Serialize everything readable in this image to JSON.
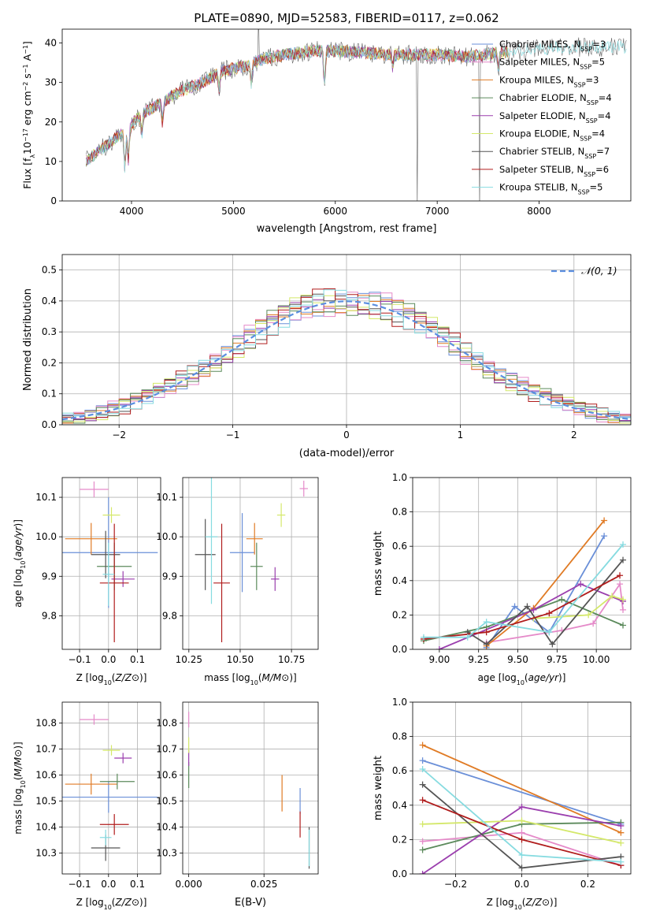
{
  "colors": {
    "series": [
      "#6a8fd8",
      "#e58ac9",
      "#e07b25",
      "#5b8a5b",
      "#9b3fae",
      "#d4e86a",
      "#555555",
      "#b01c1c",
      "#86dbe0"
    ],
    "gaussian": "#5b8fe0",
    "grid": "#b0b0b0"
  },
  "chart_data": [
    {
      "id": "spectrum",
      "type": "line",
      "title": "PLATE=0890, MJD=52583, FIBERID=0117, z=0.062",
      "xlabel": "wavelength [Angstrom, rest frame]",
      "ylabel": "Flux [f_λ10^-17 erg cm^-2 s^-1 A^-1]",
      "ylabel_parts": [
        "Flux [f",
        "λ",
        "10",
        "−17",
        " erg cm",
        "−2",
        " s",
        "−1",
        " A",
        "−1",
        "]"
      ],
      "xlim": [
        3320,
        8900
      ],
      "ylim": [
        0,
        43.5
      ],
      "xticks": [
        4000,
        5000,
        6000,
        7000,
        8000
      ],
      "yticks": [
        0,
        10,
        20,
        30,
        40
      ],
      "grid": false,
      "legend_position": "top-right",
      "legend": [
        {
          "label": "Chabrier MILES, N",
          "sub": "SSP",
          "val": "=3"
        },
        {
          "label": "Salpeter MILES, N",
          "sub": "SSP",
          "val": "=5"
        },
        {
          "label": "Kroupa MILES, N",
          "sub": "SSP",
          "val": "=3"
        },
        {
          "label": "Chabrier ELODIE, N",
          "sub": "SSP",
          "val": "=4"
        },
        {
          "label": "Salpeter ELODIE, N",
          "sub": "SSP",
          "val": "=4"
        },
        {
          "label": "Kroupa ELODIE, N",
          "sub": "SSP",
          "val": "=4"
        },
        {
          "label": "Chabrier STELIB, N",
          "sub": "SSP",
          "val": "=7"
        },
        {
          "label": "Salpeter STELIB, N",
          "sub": "SSP",
          "val": "=6"
        },
        {
          "label": "Kroupa STELIB, N",
          "sub": "SSP",
          "val": "=5"
        }
      ],
      "continuum": [
        [
          3550,
          10
        ],
        [
          3700,
          13
        ],
        [
          3850,
          16
        ],
        [
          3950,
          18
        ],
        [
          4100,
          22
        ],
        [
          4300,
          25
        ],
        [
          4500,
          28
        ],
        [
          4700,
          30
        ],
        [
          4900,
          33
        ],
        [
          5100,
          34
        ],
        [
          5300,
          36
        ],
        [
          5500,
          37
        ],
        [
          5800,
          38
        ],
        [
          6000,
          38
        ],
        [
          6300,
          37.5
        ],
        [
          6600,
          37
        ],
        [
          7000,
          37
        ],
        [
          7300,
          36.5
        ],
        [
          7600,
          37.5
        ],
        [
          8000,
          38.5
        ],
        [
          8400,
          39
        ],
        [
          8900,
          39
        ]
      ],
      "absorption_features": [
        [
          3934,
          -9
        ],
        [
          3969,
          -8
        ],
        [
          4101,
          -5
        ],
        [
          4304,
          -5
        ],
        [
          4861,
          -4
        ],
        [
          5176,
          -5
        ],
        [
          5893,
          -8
        ],
        [
          6563,
          -3
        ],
        [
          7600,
          -4
        ]
      ],
      "observed_spikes": [
        [
          5250,
          10
        ],
        [
          6800,
          -38
        ],
        [
          7420,
          -38
        ]
      ]
    },
    {
      "id": "residual_distribution",
      "type": "histogram",
      "xlabel": "(data-model)/error",
      "ylabel": "Normed distribution",
      "xlim": [
        -2.5,
        2.5
      ],
      "ylim": [
        0,
        0.55
      ],
      "xticks": [
        -2,
        -1,
        0,
        1,
        2
      ],
      "xtick_labels": [
        "−2",
        "−1",
        "0",
        "1",
        "2"
      ],
      "yticks": [
        0.0,
        0.1,
        0.2,
        0.3,
        0.4,
        0.5
      ],
      "ytick_labels": [
        "0.0",
        "0.1",
        "0.2",
        "0.3",
        "0.4",
        "0.5"
      ],
      "bin_width": 0.1,
      "grid": true,
      "legend_position": "top-right",
      "gaussian_label": "N(0, 1)",
      "bin_perturbations": [
        0.04,
        -0.03,
        0.05,
        -0.02,
        0.06,
        -0.05,
        0.03,
        0.02,
        -0.04,
        0.07,
        -0.06,
        0.01
      ]
    },
    {
      "id": "age_vs_Z",
      "type": "scatter",
      "xlabel": "Z [log10(Z/Z⊙)]",
      "ylabel": "age [log10(age/yr)]",
      "xlim": [
        -0.16,
        0.18
      ],
      "ylim": [
        9.715,
        10.15
      ],
      "xticks": [
        -0.1,
        0.0,
        0.1
      ],
      "xtick_labels": [
        "−0.1",
        "0.0",
        "0.1"
      ],
      "yticks": [
        9.8,
        9.9,
        10.0,
        10.1
      ],
      "ytick_labels": [
        "9.8",
        "9.9",
        "10.0",
        "10.1"
      ],
      "grid": true,
      "points": [
        {
          "x": 0.0,
          "y": 9.96,
          "xerr": 0.17,
          "yerr": 0.14
        },
        {
          "x": -0.05,
          "y": 10.12,
          "xerr": 0.05,
          "yerr": 0.02
        },
        {
          "x": -0.06,
          "y": 9.995,
          "xerr": 0.09,
          "yerr": 0.04
        },
        {
          "x": 0.02,
          "y": 9.925,
          "xerr": 0.06,
          "yerr": 0.06
        },
        {
          "x": 0.05,
          "y": 9.893,
          "xerr": 0.04,
          "yerr": 0.02
        },
        {
          "x": 0.01,
          "y": 10.055,
          "xerr": 0.03,
          "yerr": 0.02
        },
        {
          "x": -0.01,
          "y": 9.955,
          "xerr": 0.05,
          "yerr": 0.06
        },
        {
          "x": 0.02,
          "y": 9.883,
          "xerr": 0.05,
          "yerr": 0.15
        },
        {
          "x": 0.0,
          "y": 9.905,
          "xerr": 0.02,
          "yerr": 0.08
        }
      ]
    },
    {
      "id": "age_vs_mass",
      "type": "scatter",
      "xlabel": "mass [log10(M/M⊙)]",
      "ylabel": "",
      "xlim": [
        10.22,
        10.88
      ],
      "ylim": [
        9.715,
        10.15
      ],
      "xticks": [
        10.25,
        10.5,
        10.75
      ],
      "xtick_labels": [
        "10.25",
        "10.50",
        "10.75"
      ],
      "yticks": [
        9.8,
        9.9,
        10.0,
        10.1
      ],
      "ytick_labels": [
        "9.8",
        "9.9",
        "10.0",
        "10.1"
      ],
      "grid": true,
      "points": [
        {
          "x": 10.51,
          "y": 9.96,
          "xerr": 0.06,
          "yerr": 0.1
        },
        {
          "x": 10.81,
          "y": 10.122,
          "xerr": 0.02,
          "yerr": 0.02
        },
        {
          "x": 10.57,
          "y": 9.995,
          "xerr": 0.04,
          "yerr": 0.04
        },
        {
          "x": 10.58,
          "y": 9.925,
          "xerr": 0.03,
          "yerr": 0.06
        },
        {
          "x": 10.67,
          "y": 9.893,
          "xerr": 0.02,
          "yerr": 0.03
        },
        {
          "x": 10.7,
          "y": 10.055,
          "xerr": 0.02,
          "yerr": 0.03
        },
        {
          "x": 10.33,
          "y": 9.955,
          "xerr": 0.05,
          "yerr": 0.09
        },
        {
          "x": 10.41,
          "y": 9.883,
          "xerr": 0.04,
          "yerr": 0.15
        },
        {
          "x": 10.36,
          "y": 10.0,
          "xerr": 0.03,
          "yerr": 0.17
        }
      ]
    },
    {
      "id": "mass_weight_vs_age",
      "type": "line",
      "xlabel": "age [log10(age/yr)]",
      "ylabel": "mass weight",
      "xlim": [
        8.83,
        10.22
      ],
      "ylim": [
        0,
        1.0
      ],
      "xticks": [
        9.0,
        9.25,
        9.5,
        9.75,
        10.0
      ],
      "xtick_labels": [
        "9.00",
        "9.25",
        "9.50",
        "9.75",
        "10.00"
      ],
      "yticks": [
        0.0,
        0.2,
        0.4,
        0.6,
        0.8,
        1.0
      ],
      "ytick_labels": [
        "0.0",
        "0.2",
        "0.4",
        "0.6",
        "0.8",
        "1.0"
      ],
      "grid": true,
      "series": [
        {
          "points": [
            [
              9.3,
              0.01
            ],
            [
              9.48,
              0.25
            ],
            [
              9.7,
              0.1
            ],
            [
              10.05,
              0.66
            ]
          ]
        },
        {
          "points": [
            [
              9.3,
              0.04
            ],
            [
              9.78,
              0.11
            ],
            [
              9.98,
              0.15
            ],
            [
              10.15,
              0.38
            ],
            [
              10.17,
              0.23
            ]
          ]
        },
        {
          "points": [
            [
              9.3,
              0.02
            ],
            [
              9.6,
              0.24
            ],
            [
              10.05,
              0.75
            ]
          ]
        },
        {
          "points": [
            [
              8.9,
              0.05
            ],
            [
              9.3,
              0.13
            ],
            [
              9.78,
              0.29
            ],
            [
              10.17,
              0.14
            ]
          ]
        },
        {
          "points": [
            [
              9.0,
              0.0
            ],
            [
              9.6,
              0.23
            ],
            [
              9.9,
              0.38
            ],
            [
              10.17,
              0.28
            ]
          ]
        },
        {
          "points": [
            [
              9.6,
              0.18
            ],
            [
              9.95,
              0.2
            ],
            [
              10.1,
              0.31
            ],
            [
              10.17,
              0.29
            ]
          ]
        },
        {
          "points": [
            [
              9.18,
              0.1
            ],
            [
              9.3,
              0.03
            ],
            [
              9.56,
              0.25
            ],
            [
              9.72,
              0.03
            ],
            [
              10.17,
              0.52
            ]
          ]
        },
        {
          "points": [
            [
              8.9,
              0.06
            ],
            [
              9.3,
              0.1
            ],
            [
              9.7,
              0.21
            ],
            [
              10.15,
              0.43
            ]
          ]
        },
        {
          "points": [
            [
              8.9,
              0.07
            ],
            [
              9.18,
              0.07
            ],
            [
              9.3,
              0.16
            ],
            [
              9.7,
              0.1
            ],
            [
              10.17,
              0.61
            ]
          ]
        }
      ]
    },
    {
      "id": "mass_vs_Z",
      "type": "scatter",
      "xlabel": "Z [log10(Z/Z⊙)]",
      "ylabel": "mass [log10(M/M⊙)]",
      "xlim": [
        -0.16,
        0.18
      ],
      "ylim": [
        10.22,
        10.88
      ],
      "xticks": [
        -0.1,
        0.0,
        0.1
      ],
      "xtick_labels": [
        "−0.1",
        "0.0",
        "0.1"
      ],
      "yticks": [
        10.3,
        10.4,
        10.5,
        10.6,
        10.7,
        10.8
      ],
      "ytick_labels": [
        "10.3",
        "10.4",
        "10.5",
        "10.6",
        "10.7",
        "10.8"
      ],
      "grid": true,
      "points": [
        {
          "x": 0.0,
          "y": 10.515,
          "xerr": 0.17,
          "yerr": 0.06
        },
        {
          "x": -0.05,
          "y": 10.813,
          "xerr": 0.05,
          "yerr": 0.02
        },
        {
          "x": -0.06,
          "y": 10.565,
          "xerr": 0.09,
          "yerr": 0.04
        },
        {
          "x": 0.03,
          "y": 10.575,
          "xerr": 0.06,
          "yerr": 0.03
        },
        {
          "x": 0.05,
          "y": 10.665,
          "xerr": 0.03,
          "yerr": 0.02
        },
        {
          "x": 0.01,
          "y": 10.695,
          "xerr": 0.03,
          "yerr": 0.02
        },
        {
          "x": -0.01,
          "y": 10.32,
          "xerr": 0.05,
          "yerr": 0.05
        },
        {
          "x": 0.02,
          "y": 10.41,
          "xerr": 0.05,
          "yerr": 0.04
        },
        {
          "x": -0.01,
          "y": 10.36,
          "xerr": 0.02,
          "yerr": 0.03
        }
      ]
    },
    {
      "id": "mass_vs_ebv",
      "type": "scatter",
      "xlabel": "E(B-V)",
      "ylabel": "",
      "xlim": [
        -0.002,
        0.043
      ],
      "ylim": [
        10.22,
        10.88
      ],
      "xticks": [
        0.0,
        0.025
      ],
      "xtick_labels": [
        "0.000",
        "0.025"
      ],
      "yticks": [
        10.3,
        10.4,
        10.5,
        10.6,
        10.7,
        10.8
      ],
      "ytick_labels": [
        "10.3",
        "10.4",
        "10.5",
        "10.6",
        "10.7",
        "10.8"
      ],
      "grid": true,
      "points": [
        {
          "x": 0.037,
          "y": 10.5,
          "xerr": 0,
          "yerr": 0.05
        },
        {
          "x": 0.0,
          "y": 10.813,
          "xerr": 0,
          "yerr": 0.03
        },
        {
          "x": 0.031,
          "y": 10.53,
          "xerr": 0,
          "yerr": 0.07
        },
        {
          "x": 0.0,
          "y": 10.6,
          "xerr": 0,
          "yerr": 0.05
        },
        {
          "x": 0.0,
          "y": 10.665,
          "xerr": 0,
          "yerr": 0.03
        },
        {
          "x": 0.0,
          "y": 10.715,
          "xerr": 0,
          "yerr": 0.03
        },
        {
          "x": 0.04,
          "y": 10.32,
          "xerr": 0,
          "yerr": 0.08
        },
        {
          "x": 0.037,
          "y": 10.41,
          "xerr": 0,
          "yerr": 0.05
        },
        {
          "x": 0.04,
          "y": 10.32,
          "xerr": 0,
          "yerr": 0.07
        }
      ]
    },
    {
      "id": "mass_weight_vs_Z",
      "type": "line",
      "xlabel": "Z [log10(Z/Z⊙)]",
      "ylabel": "mass weight",
      "xlim": [
        -0.33,
        0.33
      ],
      "ylim": [
        0,
        1.0
      ],
      "xticks": [
        -0.2,
        0.0,
        0.2
      ],
      "xtick_labels": [
        "−0.2",
        "0.0",
        "0.2"
      ],
      "yticks": [
        0.0,
        0.2,
        0.4,
        0.6,
        0.8,
        1.0
      ],
      "ytick_labels": [
        "0.0",
        "0.2",
        "0.4",
        "0.6",
        "0.8",
        "1.0"
      ],
      "grid": true,
      "series": [
        {
          "points": [
            [
              -0.3,
              0.66
            ],
            [
              0.3,
              0.29
            ]
          ]
        },
        {
          "points": [
            [
              -0.3,
              0.19
            ],
            [
              0.0,
              0.24
            ],
            [
              0.3,
              0.05
            ]
          ]
        },
        {
          "points": [
            [
              -0.3,
              0.75
            ],
            [
              0.3,
              0.24
            ]
          ]
        },
        {
          "points": [
            [
              -0.3,
              0.14
            ],
            [
              0.0,
              0.29
            ],
            [
              0.3,
              0.3
            ]
          ]
        },
        {
          "points": [
            [
              -0.3,
              0.0
            ],
            [
              0.0,
              0.39
            ],
            [
              0.3,
              0.28
            ]
          ]
        },
        {
          "points": [
            [
              -0.3,
              0.29
            ],
            [
              0.0,
              0.31
            ],
            [
              0.3,
              0.18
            ]
          ]
        },
        {
          "points": [
            [
              -0.3,
              0.52
            ],
            [
              0.0,
              0.035
            ],
            [
              0.3,
              0.1
            ]
          ]
        },
        {
          "points": [
            [
              -0.3,
              0.43
            ],
            [
              0.0,
              0.2
            ],
            [
              0.3,
              0.05
            ]
          ]
        },
        {
          "points": [
            [
              -0.3,
              0.61
            ],
            [
              0.0,
              0.11
            ],
            [
              0.3,
              0.07
            ]
          ]
        }
      ]
    }
  ]
}
